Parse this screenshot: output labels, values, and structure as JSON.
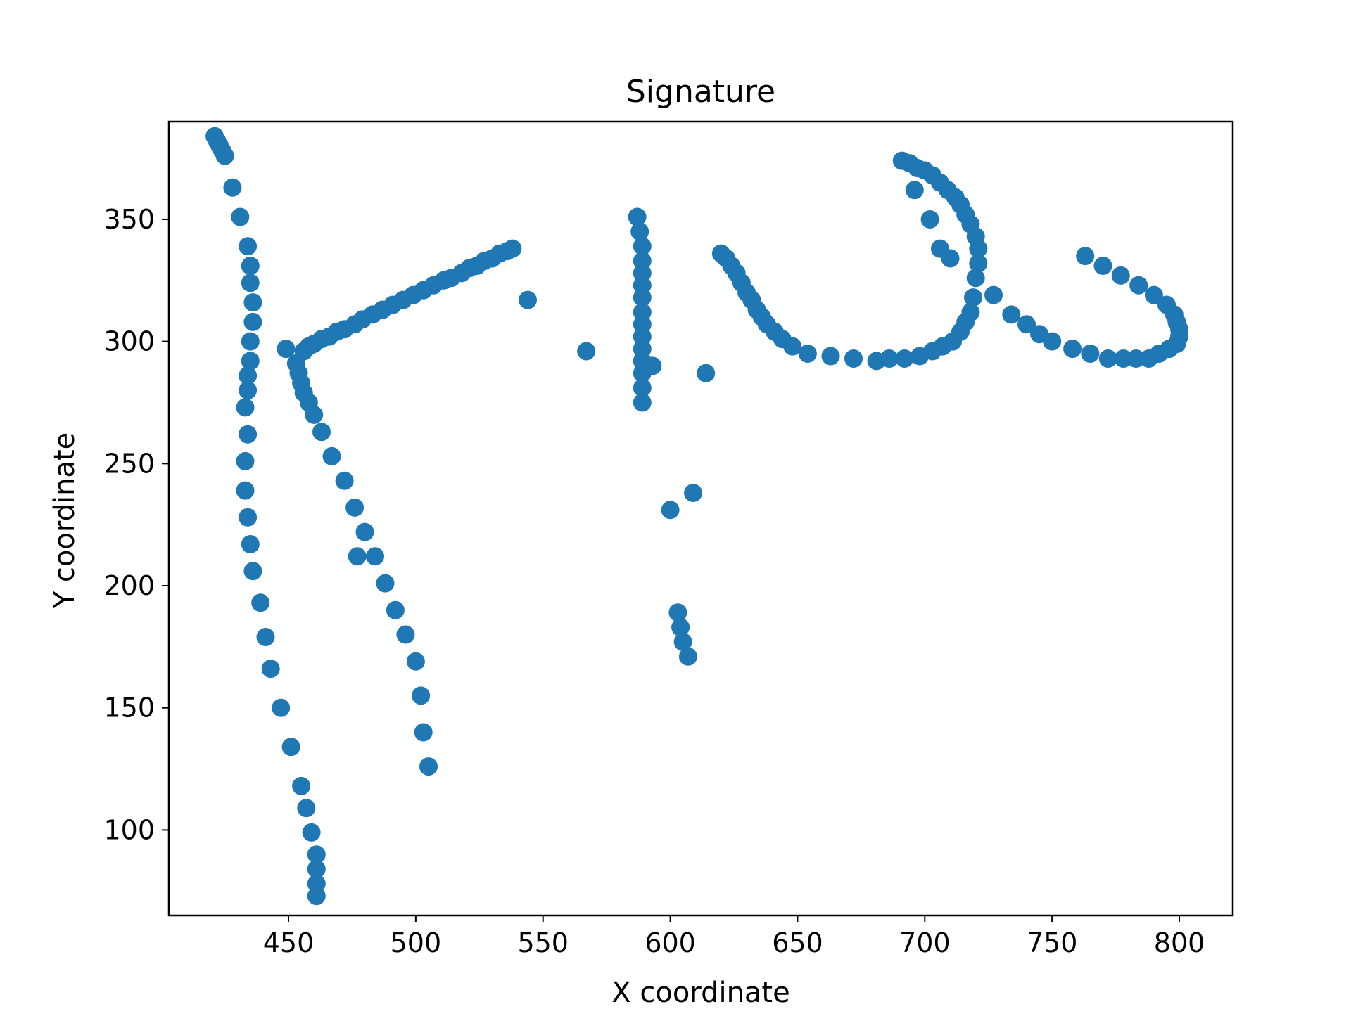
{
  "chart_data": {
    "type": "scatter",
    "title": "Signature",
    "xlabel": "X coordinate",
    "ylabel": "Y coordinate",
    "xlim": [
      403,
      821
    ],
    "ylim": [
      65,
      390
    ],
    "xticks": [
      450,
      500,
      550,
      600,
      650,
      700,
      750,
      800
    ],
    "yticks": [
      100,
      150,
      200,
      250,
      300,
      350
    ],
    "grid": false,
    "legend": "none",
    "marker_color": "#1f77b4",
    "series": [
      {
        "points": [
          [
            421,
            384
          ],
          [
            422,
            382
          ],
          [
            423,
            380
          ],
          [
            424,
            378
          ],
          [
            425,
            376
          ],
          [
            428,
            363
          ],
          [
            431,
            351
          ],
          [
            434,
            339
          ],
          [
            435,
            331
          ],
          [
            435,
            324
          ],
          [
            436,
            316
          ],
          [
            436,
            308
          ],
          [
            435,
            300
          ],
          [
            435,
            292
          ],
          [
            434,
            286
          ],
          [
            434,
            280
          ],
          [
            433,
            273
          ],
          [
            434,
            262
          ],
          [
            433,
            251
          ],
          [
            433,
            239
          ],
          [
            434,
            228
          ],
          [
            435,
            217
          ],
          [
            436,
            206
          ],
          [
            439,
            193
          ],
          [
            441,
            179
          ],
          [
            443,
            166
          ],
          [
            447,
            150
          ],
          [
            451,
            134
          ],
          [
            455,
            118
          ],
          [
            457,
            109
          ],
          [
            459,
            99
          ],
          [
            461,
            90
          ],
          [
            461,
            84
          ],
          [
            461,
            78
          ],
          [
            461,
            73
          ]
        ]
      },
      {
        "points": [
          [
            449,
            297
          ],
          [
            453,
            291
          ],
          [
            454,
            287
          ],
          [
            455,
            283
          ],
          [
            456,
            279
          ],
          [
            458,
            275
          ],
          [
            460,
            270
          ],
          [
            463,
            263
          ],
          [
            467,
            253
          ],
          [
            472,
            243
          ],
          [
            476,
            232
          ],
          [
            480,
            222
          ],
          [
            484,
            212
          ],
          [
            477,
            212
          ],
          [
            488,
            201
          ],
          [
            492,
            190
          ],
          [
            496,
            180
          ],
          [
            500,
            169
          ],
          [
            502,
            155
          ],
          [
            503,
            140
          ],
          [
            505,
            126
          ]
        ]
      },
      {
        "points": [
          [
            456,
            296
          ],
          [
            458,
            298
          ],
          [
            460,
            299
          ],
          [
            463,
            301
          ],
          [
            466,
            302
          ],
          [
            469,
            304
          ],
          [
            472,
            305
          ],
          [
            476,
            307
          ],
          [
            479,
            309
          ],
          [
            483,
            311
          ],
          [
            487,
            313
          ],
          [
            491,
            315
          ],
          [
            495,
            317
          ],
          [
            499,
            319
          ],
          [
            503,
            321
          ],
          [
            507,
            323
          ],
          [
            511,
            325
          ],
          [
            514,
            326
          ],
          [
            518,
            328
          ],
          [
            521,
            330
          ],
          [
            524,
            331
          ],
          [
            527,
            333
          ],
          [
            530,
            334
          ],
          [
            533,
            336
          ],
          [
            536,
            337
          ],
          [
            538,
            338
          ]
        ]
      },
      {
        "points": [
          [
            544,
            317
          ]
        ]
      },
      {
        "points": [
          [
            567,
            296
          ]
        ]
      },
      {
        "points": [
          [
            587,
            351
          ],
          [
            588,
            345
          ],
          [
            589,
            339
          ],
          [
            589,
            333
          ],
          [
            589,
            328
          ],
          [
            589,
            323
          ],
          [
            589,
            318
          ],
          [
            589,
            312
          ],
          [
            589,
            307
          ],
          [
            589,
            302
          ],
          [
            589,
            297
          ],
          [
            589,
            292
          ],
          [
            589,
            287
          ],
          [
            589,
            281
          ],
          [
            589,
            275
          ],
          [
            593,
            290
          ]
        ]
      },
      {
        "points": [
          [
            614,
            287
          ]
        ]
      },
      {
        "points": [
          [
            609,
            238
          ],
          [
            600,
            231
          ]
        ]
      },
      {
        "points": [
          [
            603,
            189
          ],
          [
            604,
            183
          ],
          [
            605,
            177
          ],
          [
            607,
            171
          ]
        ]
      },
      {
        "points": [
          [
            620,
            336
          ],
          [
            622,
            334
          ],
          [
            624,
            331
          ],
          [
            626,
            328
          ],
          [
            628,
            324
          ],
          [
            630,
            320
          ],
          [
            632,
            317
          ],
          [
            634,
            313
          ],
          [
            636,
            310
          ],
          [
            638,
            307
          ],
          [
            641,
            304
          ],
          [
            644,
            301
          ],
          [
            648,
            298
          ],
          [
            654,
            295
          ],
          [
            663,
            294
          ],
          [
            672,
            293
          ],
          [
            681,
            292
          ],
          [
            686,
            293
          ],
          [
            692,
            293
          ],
          [
            698,
            294
          ],
          [
            703,
            296
          ],
          [
            707,
            298
          ],
          [
            711,
            300
          ],
          [
            714,
            304
          ],
          [
            716,
            308
          ],
          [
            718,
            312
          ],
          [
            719,
            318
          ],
          [
            720,
            326
          ],
          [
            721,
            332
          ],
          [
            721,
            338
          ],
          [
            720,
            343
          ],
          [
            718,
            348
          ],
          [
            716,
            352
          ],
          [
            714,
            356
          ],
          [
            712,
            359
          ],
          [
            709,
            362
          ],
          [
            706,
            365
          ],
          [
            703,
            368
          ],
          [
            700,
            370
          ],
          [
            697,
            371
          ],
          [
            694,
            373
          ],
          [
            691,
            374
          ],
          [
            696,
            362
          ],
          [
            702,
            350
          ],
          [
            706,
            338
          ],
          [
            710,
            334
          ]
        ]
      },
      {
        "points": [
          [
            727,
            319
          ],
          [
            734,
            311
          ],
          [
            740,
            307
          ],
          [
            745,
            303
          ],
          [
            750,
            300
          ],
          [
            758,
            297
          ],
          [
            765,
            295
          ],
          [
            772,
            293
          ],
          [
            778,
            293
          ],
          [
            783,
            293
          ],
          [
            788,
            293
          ],
          [
            792,
            295
          ],
          [
            796,
            297
          ],
          [
            799,
            299
          ],
          [
            800,
            302
          ],
          [
            800,
            305
          ],
          [
            799,
            308
          ],
          [
            798,
            311
          ],
          [
            795,
            315
          ],
          [
            790,
            319
          ],
          [
            784,
            323
          ],
          [
            777,
            327
          ],
          [
            770,
            331
          ],
          [
            763,
            335
          ]
        ]
      }
    ]
  }
}
